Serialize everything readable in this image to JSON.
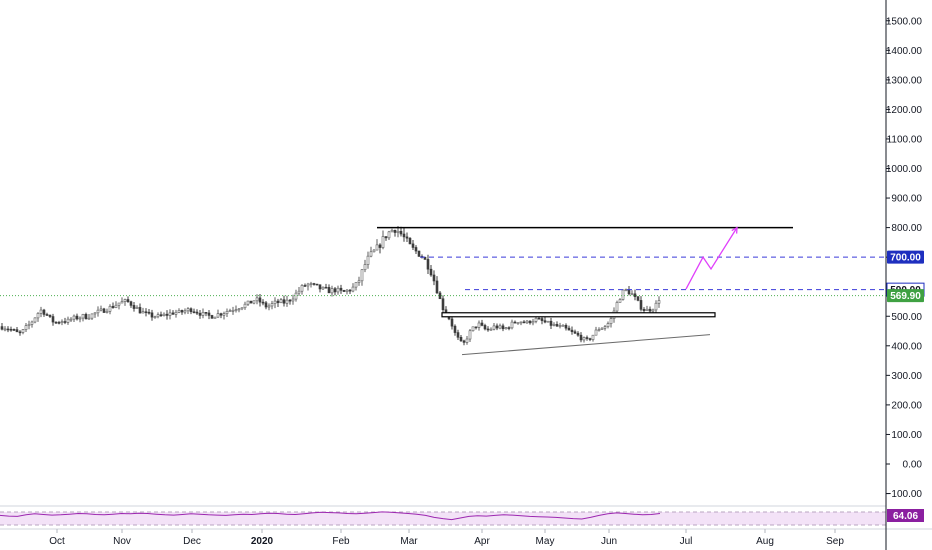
{
  "chart_data": {
    "type": "candlestick",
    "title": "",
    "ylim": [
      -150,
      1550
    ],
    "y_ticks": [
      "1500.00",
      "1400.00",
      "1300.00",
      "1200.00",
      "1100.00",
      "1000.00",
      "900.00",
      "800.00",
      "700.00",
      "600.00",
      "500.00",
      "400.00",
      "300.00",
      "200.00",
      "100.00",
      "0.00",
      "−100.00"
    ],
    "y_tick_values": [
      1500,
      1400,
      1300,
      1200,
      1100,
      1000,
      900,
      800,
      700,
      600,
      500,
      400,
      300,
      200,
      100,
      0,
      -100
    ],
    "x_ticks": [
      {
        "label": "Oct",
        "bold": false
      },
      {
        "label": "Nov",
        "bold": false
      },
      {
        "label": "Dec",
        "bold": false
      },
      {
        "label": "2020",
        "bold": true
      },
      {
        "label": "Feb",
        "bold": false
      },
      {
        "label": "Mar",
        "bold": false
      },
      {
        "label": "Apr",
        "bold": false
      },
      {
        "label": "May",
        "bold": false
      },
      {
        "label": "Jun",
        "bold": false
      },
      {
        "label": "Jul",
        "bold": false
      },
      {
        "label": "Aug",
        "bold": false
      },
      {
        "label": "Sep",
        "bold": false
      }
    ],
    "price_path": [
      [
        0,
        465
      ],
      [
        6,
        460
      ],
      [
        10,
        455
      ],
      [
        14,
        448
      ],
      [
        18,
        440
      ],
      [
        22,
        450
      ],
      [
        26,
        465
      ],
      [
        30,
        478
      ],
      [
        33,
        492
      ],
      [
        36,
        508
      ],
      [
        40,
        520
      ],
      [
        44,
        512
      ],
      [
        47,
        500
      ],
      [
        50,
        488
      ],
      [
        54,
        478
      ],
      [
        58,
        482
      ],
      [
        62,
        486
      ],
      [
        66,
        482
      ],
      [
        70,
        490
      ],
      [
        74,
        494
      ],
      [
        78,
        496
      ],
      [
        82,
        500
      ],
      [
        86,
        498
      ],
      [
        90,
        504
      ],
      [
        94,
        510
      ],
      [
        98,
        515
      ],
      [
        102,
        520
      ],
      [
        106,
        526
      ],
      [
        110,
        530
      ],
      [
        114,
        538
      ],
      [
        118,
        545
      ],
      [
        122,
        548
      ],
      [
        126,
        550
      ],
      [
        130,
        542
      ],
      [
        134,
        532
      ],
      [
        138,
        520
      ],
      [
        142,
        512
      ],
      [
        146,
        505
      ],
      [
        150,
        502
      ],
      [
        154,
        500
      ],
      [
        158,
        498
      ],
      [
        162,
        502
      ],
      [
        166,
        506
      ],
      [
        170,
        510
      ],
      [
        174,
        514
      ],
      [
        178,
        512
      ],
      [
        182,
        516
      ],
      [
        186,
        520
      ],
      [
        190,
        524
      ],
      [
        194,
        518
      ],
      [
        198,
        512
      ],
      [
        202,
        506
      ],
      [
        206,
        502
      ],
      [
        210,
        500
      ],
      [
        214,
        504
      ],
      [
        218,
        508
      ],
      [
        222,
        512
      ],
      [
        226,
        518
      ],
      [
        230,
        522
      ],
      [
        234,
        528
      ],
      [
        238,
        532
      ],
      [
        242,
        536
      ],
      [
        246,
        540
      ],
      [
        250,
        548
      ],
      [
        254,
        556
      ],
      [
        258,
        552
      ],
      [
        262,
        540
      ],
      [
        266,
        532
      ],
      [
        270,
        538
      ],
      [
        274,
        544
      ],
      [
        278,
        548
      ],
      [
        282,
        546
      ],
      [
        286,
        550
      ],
      [
        290,
        560
      ],
      [
        294,
        572
      ],
      [
        298,
        586
      ],
      [
        302,
        600
      ],
      [
        306,
        608
      ],
      [
        310,
        604
      ],
      [
        314,
        600
      ],
      [
        318,
        596
      ],
      [
        322,
        590
      ],
      [
        326,
        588
      ],
      [
        330,
        586
      ],
      [
        334,
        590
      ],
      [
        338,
        584
      ],
      [
        342,
        580
      ],
      [
        346,
        586
      ],
      [
        350,
        592
      ],
      [
        354,
        600
      ],
      [
        358,
        622
      ],
      [
        362,
        660
      ],
      [
        366,
        690
      ],
      [
        370,
        708
      ],
      [
        374,
        722
      ],
      [
        378,
        738
      ],
      [
        382,
        760
      ],
      [
        386,
        778
      ],
      [
        390,
        790
      ],
      [
        394,
        796
      ],
      [
        398,
        786
      ],
      [
        402,
        770
      ],
      [
        406,
        752
      ],
      [
        410,
        732
      ],
      [
        414,
        722
      ],
      [
        418,
        712
      ],
      [
        422,
        700
      ],
      [
        426,
        678
      ],
      [
        430,
        650
      ],
      [
        434,
        612
      ],
      [
        438,
        566
      ],
      [
        442,
        528
      ],
      [
        446,
        508
      ],
      [
        450,
        480
      ],
      [
        454,
        442
      ],
      [
        458,
        418
      ],
      [
        462,
        402
      ],
      [
        466,
        428
      ],
      [
        470,
        452
      ],
      [
        474,
        466
      ],
      [
        478,
        472
      ],
      [
        482,
        460
      ],
      [
        486,
        452
      ],
      [
        490,
        458
      ],
      [
        494,
        466
      ],
      [
        498,
        462
      ],
      [
        502,
        456
      ],
      [
        506,
        462
      ],
      [
        510,
        472
      ],
      [
        514,
        480
      ],
      [
        518,
        486
      ],
      [
        522,
        480
      ],
      [
        526,
        478
      ],
      [
        530,
        486
      ],
      [
        534,
        490
      ],
      [
        538,
        486
      ],
      [
        542,
        482
      ],
      [
        546,
        476
      ],
      [
        550,
        472
      ],
      [
        554,
        468
      ],
      [
        558,
        464
      ],
      [
        562,
        462
      ],
      [
        566,
        454
      ],
      [
        570,
        446
      ],
      [
        574,
        440
      ],
      [
        578,
        432
      ],
      [
        582,
        422
      ],
      [
        586,
        418
      ],
      [
        590,
        428
      ],
      [
        594,
        446
      ],
      [
        598,
        458
      ],
      [
        602,
        464
      ],
      [
        606,
        470
      ],
      [
        610,
        490
      ],
      [
        614,
        528
      ],
      [
        618,
        560
      ],
      [
        622,
        582
      ],
      [
        626,
        588
      ],
      [
        630,
        578
      ],
      [
        634,
        560
      ],
      [
        638,
        540
      ],
      [
        642,
        524
      ],
      [
        646,
        520
      ],
      [
        650,
        526
      ],
      [
        654,
        532
      ],
      [
        658,
        560
      ],
      [
        660,
        570
      ]
    ],
    "levels": [
      {
        "name": "resistance",
        "value": 800
      },
      {
        "name": "target",
        "value": 700,
        "label": "700.00"
      },
      {
        "name": "breakout",
        "value": 590,
        "label": "590.00"
      },
      {
        "name": "last-price",
        "value": 569.9,
        "label": "569.90"
      },
      {
        "name": "support-box",
        "value": 505
      }
    ],
    "trendline": {
      "from": [
        462,
        370
      ],
      "to": [
        710,
        438
      ]
    },
    "projection": [
      [
        686,
        592
      ],
      [
        703,
        700
      ],
      [
        711,
        660
      ],
      [
        737,
        800
      ]
    ],
    "rsi": {
      "current_label": "64.06",
      "values": [
        58,
        56,
        55,
        60,
        63,
        61,
        59,
        60,
        62,
        64,
        63,
        61,
        60,
        62,
        64,
        63,
        65,
        64,
        62,
        60,
        59,
        61,
        63,
        62,
        60,
        59,
        58,
        60,
        62,
        61,
        63,
        65,
        64,
        62,
        61,
        63,
        66,
        68,
        67,
        66,
        64,
        63,
        65,
        67,
        69,
        68,
        66,
        64,
        62,
        58,
        52,
        48,
        45,
        50,
        55,
        57,
        56,
        58,
        60,
        59,
        57,
        55,
        54,
        53,
        52,
        50,
        48,
        47,
        52,
        58,
        63,
        66,
        64,
        62,
        60,
        61,
        64
      ]
    },
    "colors": {
      "up": "#26a69a",
      "down": "#ef5350",
      "candle_gray": "#6b6b6b",
      "target_line": "#3a3ad9",
      "resistance": "#000000",
      "projection": "#e040fb",
      "rsi_line": "#9c27b0",
      "last_price_tag": "#3fa142",
      "level_tag": "#1e2fbf",
      "rsi_tag": "#8b1fa0"
    }
  }
}
